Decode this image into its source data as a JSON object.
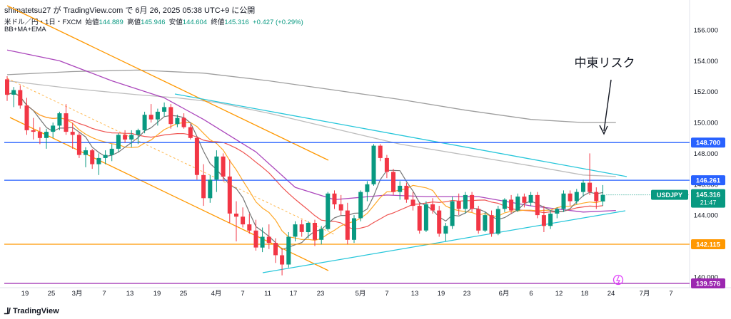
{
  "header": {
    "publisher_line": "shimatetsu27 が TradingView.com で 6月 26, 2025 05:38 UTC+9 に公開",
    "symbol_line": "米ドル／円・1日・FXCM",
    "open_label": "始値",
    "open": "144.889",
    "high_label": "高値",
    "high": "145.946",
    "low_label": "安値",
    "low": "144.604",
    "close_label": "終値",
    "close": "145.316",
    "change": "+0.427 (+0.29%)",
    "indicators": "BB+MA+EMA"
  },
  "annotation": {
    "text": "中東リスク"
  },
  "footer": {
    "brand": "TradingView"
  },
  "chart_data": {
    "type": "candlestick",
    "symbol": "USDJPY",
    "x_tick_labels": [
      "19",
      "25",
      "3月",
      "7",
      "13",
      "19",
      "25",
      "4月",
      "7",
      "11",
      "17",
      "23",
      "5月",
      "7",
      "13",
      "19",
      "23",
      "6月",
      "6",
      "12",
      "18",
      "24",
      "7月",
      "7"
    ],
    "y_tick_labels": [
      "140.000",
      "142.000",
      "144.000",
      "146.000",
      "148.000",
      "150.000",
      "152.000",
      "154.000",
      "156.000"
    ],
    "ylim": [
      139.3,
      157.2
    ],
    "price_lines": [
      {
        "value": 148.7,
        "label": "148.700",
        "color": "#2962ff"
      },
      {
        "value": 146.261,
        "label": "146.261",
        "color": "#2962ff"
      },
      {
        "value": 142.115,
        "label": "142.115",
        "color": "#ff9800"
      },
      {
        "value": 139.576,
        "label": "139.576",
        "color": "#9c27b0"
      }
    ],
    "last_price": {
      "value": 145.316,
      "label": "145.316",
      "symbol": "USDJPY",
      "countdown": "21:47"
    },
    "candles": [
      {
        "o": 152.8,
        "h": 153.0,
        "l": 151.4,
        "c": 151.8
      },
      {
        "o": 151.8,
        "h": 152.3,
        "l": 151.0,
        "c": 152.1
      },
      {
        "o": 152.1,
        "h": 152.4,
        "l": 150.9,
        "c": 151.1
      },
      {
        "o": 151.1,
        "h": 151.6,
        "l": 149.2,
        "c": 149.5
      },
      {
        "o": 149.5,
        "h": 150.3,
        "l": 148.9,
        "c": 149.4
      },
      {
        "o": 149.4,
        "h": 149.7,
        "l": 148.6,
        "c": 149.0
      },
      {
        "o": 149.0,
        "h": 149.6,
        "l": 148.3,
        "c": 149.4
      },
      {
        "o": 149.4,
        "h": 150.0,
        "l": 149.0,
        "c": 149.8
      },
      {
        "o": 149.8,
        "h": 150.7,
        "l": 149.5,
        "c": 150.6
      },
      {
        "o": 150.6,
        "h": 151.2,
        "l": 149.2,
        "c": 149.4
      },
      {
        "o": 149.4,
        "h": 150.0,
        "l": 148.3,
        "c": 149.2
      },
      {
        "o": 149.2,
        "h": 149.4,
        "l": 147.7,
        "c": 147.9
      },
      {
        "o": 147.9,
        "h": 148.4,
        "l": 147.1,
        "c": 148.2
      },
      {
        "o": 148.2,
        "h": 148.3,
        "l": 147.0,
        "c": 147.3
      },
      {
        "o": 147.3,
        "h": 148.0,
        "l": 146.6,
        "c": 147.7
      },
      {
        "o": 147.7,
        "h": 148.2,
        "l": 147.3,
        "c": 147.9
      },
      {
        "o": 147.9,
        "h": 148.6,
        "l": 147.5,
        "c": 148.3
      },
      {
        "o": 148.3,
        "h": 149.3,
        "l": 148.1,
        "c": 149.2
      },
      {
        "o": 149.2,
        "h": 149.5,
        "l": 148.7,
        "c": 148.9
      },
      {
        "o": 148.9,
        "h": 149.5,
        "l": 148.4,
        "c": 149.2
      },
      {
        "o": 149.2,
        "h": 149.6,
        "l": 148.6,
        "c": 149.5
      },
      {
        "o": 149.5,
        "h": 150.7,
        "l": 149.3,
        "c": 150.5
      },
      {
        "o": 150.5,
        "h": 151.2,
        "l": 150.0,
        "c": 150.2
      },
      {
        "o": 150.2,
        "h": 150.9,
        "l": 149.8,
        "c": 150.7
      },
      {
        "o": 150.7,
        "h": 151.3,
        "l": 150.4,
        "c": 151.0
      },
      {
        "o": 151.0,
        "h": 151.2,
        "l": 149.6,
        "c": 149.9
      },
      {
        "o": 149.9,
        "h": 150.5,
        "l": 149.7,
        "c": 150.3
      },
      {
        "o": 150.3,
        "h": 150.6,
        "l": 149.6,
        "c": 149.7
      },
      {
        "o": 149.7,
        "h": 149.9,
        "l": 148.9,
        "c": 149.0
      },
      {
        "o": 149.0,
        "h": 149.1,
        "l": 146.3,
        "c": 146.6
      },
      {
        "o": 146.6,
        "h": 147.3,
        "l": 144.6,
        "c": 145.1
      },
      {
        "o": 145.1,
        "h": 146.6,
        "l": 144.8,
        "c": 146.3
      },
      {
        "o": 146.3,
        "h": 148.2,
        "l": 145.5,
        "c": 147.8
      },
      {
        "o": 147.8,
        "h": 148.0,
        "l": 146.2,
        "c": 146.5
      },
      {
        "o": 146.5,
        "h": 147.6,
        "l": 143.5,
        "c": 144.1
      },
      {
        "o": 144.1,
        "h": 144.9,
        "l": 142.3,
        "c": 143.9
      },
      {
        "o": 143.9,
        "h": 144.5,
        "l": 143.2,
        "c": 143.4
      },
      {
        "o": 143.4,
        "h": 144.1,
        "l": 142.8,
        "c": 143.0
      },
      {
        "o": 143.0,
        "h": 143.7,
        "l": 141.7,
        "c": 141.9
      },
      {
        "o": 141.9,
        "h": 143.2,
        "l": 141.6,
        "c": 142.6
      },
      {
        "o": 142.6,
        "h": 143.4,
        "l": 141.8,
        "c": 142.2
      },
      {
        "o": 142.2,
        "h": 142.5,
        "l": 140.9,
        "c": 141.4
      },
      {
        "o": 141.4,
        "h": 141.8,
        "l": 140.1,
        "c": 140.8
      },
      {
        "o": 140.8,
        "h": 142.9,
        "l": 140.6,
        "c": 142.6
      },
      {
        "o": 142.6,
        "h": 143.6,
        "l": 142.3,
        "c": 143.4
      },
      {
        "o": 143.4,
        "h": 143.7,
        "l": 142.6,
        "c": 142.9
      },
      {
        "o": 142.9,
        "h": 143.6,
        "l": 142.5,
        "c": 143.5
      },
      {
        "o": 143.5,
        "h": 143.7,
        "l": 142.0,
        "c": 142.4
      },
      {
        "o": 142.4,
        "h": 143.3,
        "l": 142.1,
        "c": 143.1
      },
      {
        "o": 143.1,
        "h": 145.5,
        "l": 143.0,
        "c": 145.4
      },
      {
        "o": 145.4,
        "h": 145.6,
        "l": 144.4,
        "c": 144.7
      },
      {
        "o": 144.7,
        "h": 145.3,
        "l": 144.0,
        "c": 144.3
      },
      {
        "o": 144.3,
        "h": 144.8,
        "l": 142.1,
        "c": 142.4
      },
      {
        "o": 142.4,
        "h": 144.0,
        "l": 142.2,
        "c": 143.8
      },
      {
        "o": 143.8,
        "h": 145.6,
        "l": 143.6,
        "c": 145.5
      },
      {
        "o": 145.5,
        "h": 146.2,
        "l": 144.9,
        "c": 146.0
      },
      {
        "o": 146.0,
        "h": 148.6,
        "l": 145.9,
        "c": 148.5
      },
      {
        "o": 148.5,
        "h": 148.6,
        "l": 147.5,
        "c": 147.7
      },
      {
        "o": 147.7,
        "h": 147.9,
        "l": 146.4,
        "c": 146.8
      },
      {
        "o": 146.8,
        "h": 147.0,
        "l": 145.3,
        "c": 145.5
      },
      {
        "o": 145.5,
        "h": 146.2,
        "l": 145.0,
        "c": 145.9
      },
      {
        "o": 145.9,
        "h": 146.1,
        "l": 144.8,
        "c": 145.0
      },
      {
        "o": 145.0,
        "h": 145.5,
        "l": 144.3,
        "c": 144.6
      },
      {
        "o": 144.6,
        "h": 144.8,
        "l": 142.8,
        "c": 143.0
      },
      {
        "o": 143.0,
        "h": 144.9,
        "l": 142.9,
        "c": 144.7
      },
      {
        "o": 144.7,
        "h": 145.1,
        "l": 144.1,
        "c": 144.3
      },
      {
        "o": 144.3,
        "h": 144.6,
        "l": 142.6,
        "c": 142.8
      },
      {
        "o": 142.8,
        "h": 143.5,
        "l": 142.3,
        "c": 143.3
      },
      {
        "o": 143.3,
        "h": 145.2,
        "l": 143.1,
        "c": 144.9
      },
      {
        "o": 144.9,
        "h": 145.4,
        "l": 144.0,
        "c": 144.4
      },
      {
        "o": 144.4,
        "h": 145.5,
        "l": 144.1,
        "c": 145.3
      },
      {
        "o": 145.3,
        "h": 145.5,
        "l": 144.2,
        "c": 144.4
      },
      {
        "o": 144.4,
        "h": 144.6,
        "l": 142.8,
        "c": 143.0
      },
      {
        "o": 143.0,
        "h": 144.2,
        "l": 142.9,
        "c": 144.0
      },
      {
        "o": 144.0,
        "h": 144.3,
        "l": 142.6,
        "c": 142.8
      },
      {
        "o": 142.8,
        "h": 144.6,
        "l": 142.7,
        "c": 144.4
      },
      {
        "o": 144.4,
        "h": 145.1,
        "l": 144.2,
        "c": 145.0
      },
      {
        "o": 145.0,
        "h": 145.3,
        "l": 144.1,
        "c": 144.3
      },
      {
        "o": 144.3,
        "h": 145.4,
        "l": 144.2,
        "c": 145.2
      },
      {
        "o": 145.2,
        "h": 145.4,
        "l": 144.5,
        "c": 144.8
      },
      {
        "o": 144.8,
        "h": 145.5,
        "l": 144.6,
        "c": 145.3
      },
      {
        "o": 145.3,
        "h": 145.5,
        "l": 143.8,
        "c": 144.0
      },
      {
        "o": 144.0,
        "h": 144.6,
        "l": 142.9,
        "c": 143.3
      },
      {
        "o": 143.3,
        "h": 144.3,
        "l": 143.1,
        "c": 144.1
      },
      {
        "o": 144.1,
        "h": 144.5,
        "l": 143.8,
        "c": 144.4
      },
      {
        "o": 144.4,
        "h": 145.6,
        "l": 144.2,
        "c": 145.4
      },
      {
        "o": 145.4,
        "h": 145.6,
        "l": 144.6,
        "c": 144.9
      },
      {
        "o": 144.9,
        "h": 145.7,
        "l": 144.7,
        "c": 145.5
      },
      {
        "o": 145.5,
        "h": 146.3,
        "l": 145.2,
        "c": 146.1
      },
      {
        "o": 146.1,
        "h": 148.0,
        "l": 145.3,
        "c": 145.5
      },
      {
        "o": 145.5,
        "h": 145.8,
        "l": 144.4,
        "c": 144.9
      },
      {
        "o": 144.889,
        "h": 145.946,
        "l": 144.604,
        "c": 145.316
      }
    ]
  }
}
